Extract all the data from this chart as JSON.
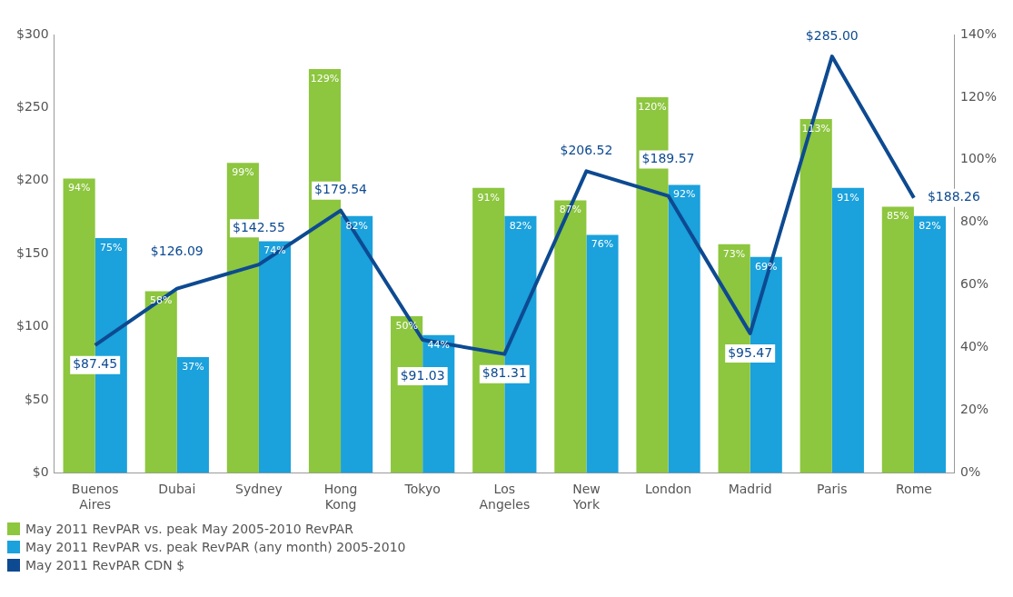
{
  "chart_data": {
    "type": "bar",
    "categories": [
      "Buenos Aires",
      "Dubai",
      "Sydney",
      "Hong Kong",
      "Tokyo",
      "Los Angeles",
      "New York",
      "London",
      "Madrid",
      "Paris",
      "Rome"
    ],
    "series": [
      {
        "name": "May 2011 RevPAR vs. peak May 2005-2010 RevPAR",
        "color": "#8dc63f",
        "axis": "y2",
        "values": [
          94,
          58,
          99,
          129,
          50,
          91,
          87,
          120,
          73,
          113,
          85
        ],
        "value_labels": [
          "94%",
          "58%",
          "99%",
          "129%",
          "50%",
          "91%",
          "87%",
          "120%",
          "73%",
          "113%",
          "85%"
        ]
      },
      {
        "name": "May 2011 RevPAR vs. peak RevPAR (any month) 2005-2010",
        "color": "#1ba1dc",
        "axis": "y2",
        "values": [
          75,
          37,
          74,
          82,
          44,
          82,
          76,
          92,
          69,
          91,
          82
        ],
        "value_labels": [
          "75%",
          "37%",
          "74%",
          "82%",
          "44%",
          "82%",
          "76%",
          "92%",
          "69%",
          "91%",
          "82%"
        ]
      },
      {
        "name": "May 2011 RevPAR CDN $",
        "color": "#0d4a91",
        "type": "line",
        "axis": "y",
        "values": [
          87.45,
          126.09,
          142.55,
          179.54,
          91.03,
          81.31,
          206.52,
          189.57,
          95.47,
          285.0,
          188.26
        ],
        "value_labels": [
          "$87.45",
          "$126.09",
          "$142.55",
          "$179.54",
          "$91.03",
          "$81.31",
          "$206.52",
          "$189.57",
          "$95.47",
          "$285.00",
          "$188.26"
        ]
      }
    ],
    "ylim": [
      0,
      300
    ],
    "yticks": [
      {
        "value": 0,
        "label": "$0"
      },
      {
        "value": 50,
        "label": "$50"
      },
      {
        "value": 100,
        "label": "$100"
      },
      {
        "value": 150,
        "label": "$150"
      },
      {
        "value": 200,
        "label": "$200"
      },
      {
        "value": 250,
        "label": "$250"
      },
      {
        "value": 300,
        "label": "$300"
      }
    ],
    "y2lim": [
      0,
      140
    ],
    "y2ticks": [
      {
        "value": 0,
        "label": "0%"
      },
      {
        "value": 20,
        "label": "20%"
      },
      {
        "value": 40,
        "label": "40%"
      },
      {
        "value": 60,
        "label": "60%"
      },
      {
        "value": 80,
        "label": "80%"
      },
      {
        "value": 100,
        "label": "100%"
      },
      {
        "value": 120,
        "label": "120%"
      },
      {
        "value": 140,
        "label": "140%"
      }
    ],
    "grid": false,
    "legend": "bottom left",
    "marker": "none"
  }
}
